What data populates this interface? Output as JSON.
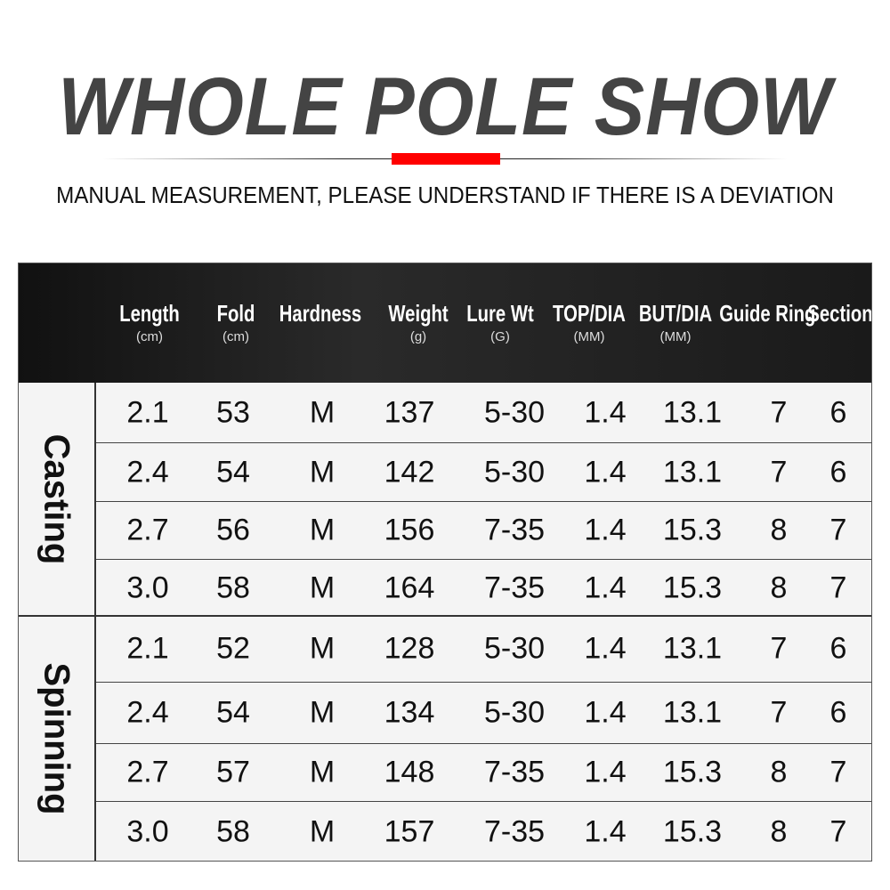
{
  "title": "WHOLE POLE SHOW",
  "subtitle": "MANUAL MEASUREMENT, PLEASE UNDERSTAND IF THERE IS A DEVIATION",
  "colors": {
    "accent": "#ff0000",
    "title": "#444444",
    "header_bg": "#1a1a1a",
    "row_bg": "#f4f4f4"
  },
  "columns": [
    {
      "name": "Length",
      "unit": "(cm)"
    },
    {
      "name": "Fold",
      "unit": "(cm)"
    },
    {
      "name": "Hardness",
      "unit": ""
    },
    {
      "name": "Weight",
      "unit": "(g)"
    },
    {
      "name": "Lure Wt",
      "unit": "(G)"
    },
    {
      "name": "TOP/DIA",
      "unit": "(MM)"
    },
    {
      "name": "BUT/DIA",
      "unit": "(MM)"
    },
    {
      "name": "Guide Ring",
      "unit": ""
    },
    {
      "name": "Section",
      "unit": ""
    }
  ],
  "groups": [
    {
      "label": "Casting",
      "rows": [
        [
          "2.1",
          "53",
          "M",
          "137",
          "5-30",
          "1.4",
          "13.1",
          "7",
          "6"
        ],
        [
          "2.4",
          "54",
          "M",
          "142",
          "5-30",
          "1.4",
          "13.1",
          "7",
          "6"
        ],
        [
          "2.7",
          "56",
          "M",
          "156",
          "7-35",
          "1.4",
          "15.3",
          "8",
          "7"
        ],
        [
          "3.0",
          "58",
          "M",
          "164",
          "7-35",
          "1.4",
          "15.3",
          "8",
          "7"
        ]
      ]
    },
    {
      "label": "Spinning",
      "rows": [
        [
          "2.1",
          "52",
          "M",
          "128",
          "5-30",
          "1.4",
          "13.1",
          "7",
          "6"
        ],
        [
          "2.4",
          "54",
          "M",
          "134",
          "5-30",
          "1.4",
          "13.1",
          "7",
          "6"
        ],
        [
          "2.7",
          "57",
          "M",
          "148",
          "7-35",
          "1.4",
          "15.3",
          "8",
          "7"
        ],
        [
          "3.0",
          "58",
          "M",
          "157",
          "7-35",
          "1.4",
          "15.3",
          "8",
          "7"
        ]
      ]
    }
  ]
}
